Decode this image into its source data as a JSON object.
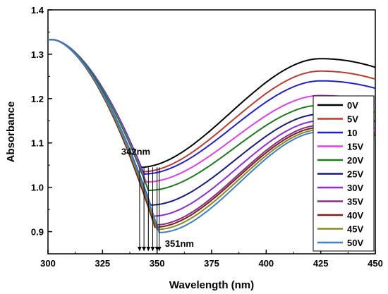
{
  "chart_data": {
    "type": "line",
    "xlabel": "Wavelength (nm)",
    "ylabel": "Absorbance",
    "xlim": [
      300,
      450
    ],
    "ylim": [
      0.85,
      1.4
    ],
    "xticks": [
      300,
      325,
      350,
      375,
      400,
      425,
      450
    ],
    "yticks": [
      0.9,
      1.0,
      1.1,
      1.2,
      1.3,
      1.4
    ],
    "grid": false,
    "legend_position": "right",
    "annotations": [
      {
        "text": "342nm",
        "x": 342,
        "y": 1.045
      },
      {
        "text": "351nm",
        "x": 351,
        "y": 0.9
      }
    ],
    "arrow_wavelengths": [
      342,
      344,
      346,
      348,
      350,
      351
    ],
    "series": [
      {
        "name": "0V",
        "color": "#000000",
        "min_x": 342,
        "min_y": 1.045,
        "peak_y": 1.29
      },
      {
        "name": "5V",
        "color": "#c0392b",
        "min_x": 343,
        "min_y": 1.035,
        "peak_y": 1.262
      },
      {
        "name": "10",
        "color": "#1f1fd6",
        "min_x": 344,
        "min_y": 1.03,
        "peak_y": 1.24
      },
      {
        "name": "15V",
        "color": "#e040e8",
        "min_x": 345,
        "min_y": 1.012,
        "peak_y": 1.207
      },
      {
        "name": "20V",
        "color": "#1d7a1d",
        "min_x": 346,
        "min_y": 0.993,
        "peak_y": 1.185
      },
      {
        "name": "25V",
        "color": "#1a1a7a",
        "min_x": 347,
        "min_y": 0.96,
        "peak_y": 1.165
      },
      {
        "name": "30V",
        "color": "#8a2be2",
        "min_x": 348,
        "min_y": 0.935,
        "peak_y": 1.15
      },
      {
        "name": "35V",
        "color": "#8b2a8b",
        "min_x": 349,
        "min_y": 0.915,
        "peak_y": 1.14
      },
      {
        "name": "40V",
        "color": "#7a1f1f",
        "min_x": 349,
        "min_y": 0.91,
        "peak_y": 1.135
      },
      {
        "name": "45V",
        "color": "#8a8a1a",
        "min_x": 350,
        "min_y": 0.905,
        "peak_y": 1.13
      },
      {
        "name": "50V",
        "color": "#3a7fd0",
        "min_x": 351,
        "min_y": 0.898,
        "peak_y": 1.125
      }
    ]
  }
}
